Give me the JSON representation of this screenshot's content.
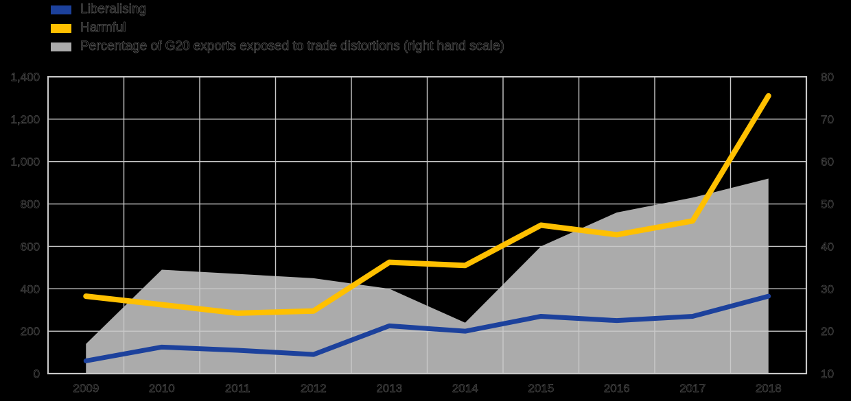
{
  "background_color": "#000000",
  "grid_color": "#c9c9c9",
  "legend": [
    {
      "label": "Liberalising",
      "color": "#1c419c"
    },
    {
      "label": "Harmful",
      "color": "#ffc000"
    },
    {
      "label": "Percentage of G20 exports exposed to trade distortions (right hand scale)",
      "color": "#ababab"
    }
  ],
  "chart_data": {
    "type": "line",
    "title": "",
    "categories": [
      "2009",
      "2010",
      "2011",
      "2012",
      "2013",
      "2014",
      "2015",
      "2016",
      "2017",
      "2018"
    ],
    "series": [
      {
        "name": "Liberalising",
        "type": "line",
        "axis": "left",
        "color": "#1c419c",
        "values": [
          60,
          125,
          110,
          90,
          225,
          200,
          270,
          250,
          270,
          365
        ]
      },
      {
        "name": "Harmful",
        "type": "line",
        "axis": "left",
        "color": "#ffc000",
        "values": [
          365,
          325,
          285,
          295,
          525,
          510,
          700,
          655,
          720,
          1310
        ]
      },
      {
        "name": "Percentage of G20 exports exposed to trade distortions (right hand scale)",
        "type": "area",
        "axis": "right",
        "color": "#ababab",
        "values": [
          17,
          34.5,
          33.5,
          32.5,
          30,
          22,
          40,
          48,
          51.5,
          56
        ]
      }
    ],
    "left_axis": {
      "min": 0,
      "max": 1400,
      "tick_labels_top_to_bottom": [
        "1,400",
        "1,200",
        "1,000",
        "800",
        "600",
        "400",
        "200",
        "0"
      ]
    },
    "right_axis": {
      "min": 10,
      "max": 80,
      "tick_labels_top_to_bottom": [
        "80",
        "70",
        "60",
        "50",
        "40",
        "30",
        "20",
        "10"
      ]
    },
    "grid": "on",
    "legend_position": "top-left"
  }
}
